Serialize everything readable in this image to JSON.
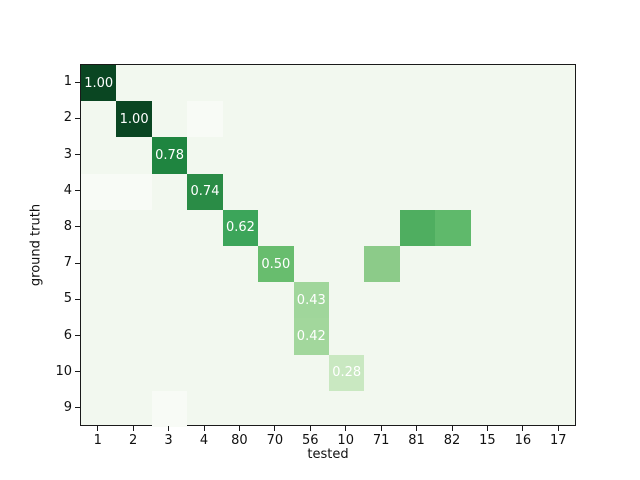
{
  "chart_data": {
    "type": "heatmap",
    "title": "",
    "xlabel": "tested",
    "ylabel": "ground truth",
    "colormap": "Greens",
    "legend": "none",
    "grid": false,
    "x_categories": [
      "1",
      "2",
      "3",
      "4",
      "80",
      "70",
      "56",
      "10",
      "71",
      "81",
      "82",
      "15",
      "16",
      "17"
    ],
    "y_categories": [
      "1",
      "2",
      "3",
      "4",
      "8",
      "7",
      "5",
      "6",
      "10",
      "9"
    ],
    "value_range": [
      0,
      1
    ],
    "cells": [
      {
        "row": "1",
        "col": "1",
        "value": 1.0,
        "label": "1.00",
        "color": "#0a4622"
      },
      {
        "row": "2",
        "col": "2",
        "value": 1.0,
        "label": "1.00",
        "color": "#0a4622"
      },
      {
        "row": "3",
        "col": "3",
        "value": 0.78,
        "label": "0.78",
        "color": "#1f8540"
      },
      {
        "row": "4",
        "col": "4",
        "value": 0.74,
        "label": "0.74",
        "color": "#2a8c46"
      },
      {
        "row": "8",
        "col": "80",
        "value": 0.62,
        "label": "0.62",
        "color": "#3ca55a"
      },
      {
        "row": "8",
        "col": "81",
        "value": 0.57,
        "label": "",
        "color": "#4fae60"
      },
      {
        "row": "8",
        "col": "82",
        "value": 0.53,
        "label": "",
        "color": "#5fb96b"
      },
      {
        "row": "7",
        "col": "70",
        "value": 0.5,
        "label": "0.50",
        "color": "#68bd6e"
      },
      {
        "row": "7",
        "col": "71",
        "value": 0.46,
        "label": "",
        "color": "#8ccb89"
      },
      {
        "row": "5",
        "col": "56",
        "value": 0.43,
        "label": "0.43",
        "color": "#a0d69b"
      },
      {
        "row": "6",
        "col": "56",
        "value": 0.42,
        "label": "0.42",
        "color": "#a2d79c"
      },
      {
        "row": "10",
        "col": "10",
        "value": 0.28,
        "label": "0.28",
        "color": "#c9e8c1"
      },
      {
        "row": "2",
        "col": "4",
        "value": 0.0,
        "label": "",
        "color": "#f8fbf6"
      },
      {
        "row": "4",
        "col": "1",
        "value": 0.0,
        "label": "",
        "color": "#f8fbf6"
      },
      {
        "row": "4",
        "col": "2",
        "value": 0.0,
        "label": "",
        "color": "#f8fbf6"
      },
      {
        "row": "9",
        "col": "3",
        "value": 0.0,
        "label": "",
        "color": "#f8fbf6"
      }
    ],
    "colors": {
      "figure_background": "#ffffff",
      "plot_background": "#f2f8ef",
      "spine": "#1a1a1a",
      "tick_text": "#111111",
      "cell_text": "#ffffff"
    }
  }
}
